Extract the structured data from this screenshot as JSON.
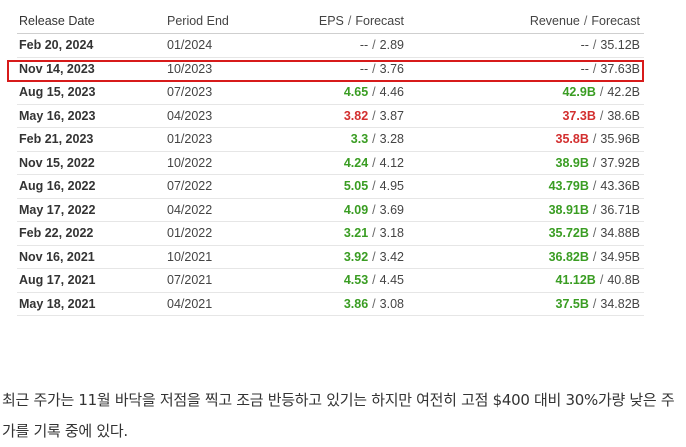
{
  "table": {
    "headers": {
      "release_date": "Release Date",
      "period_end": "Period End",
      "eps": "EPS",
      "eps_forecast": "Forecast",
      "revenue": "Revenue",
      "revenue_forecast": "Forecast",
      "separator": "/"
    },
    "rows": [
      {
        "date": "Feb 20, 2024",
        "period": "01/2024",
        "eps": "--",
        "eps_status": "none",
        "eps_forecast": "2.89",
        "revenue": "--",
        "revenue_status": "none",
        "revenue_forecast": "35.12B"
      },
      {
        "date": "Nov 14, 2023",
        "period": "10/2023",
        "eps": "--",
        "eps_status": "none",
        "eps_forecast": "3.76",
        "revenue": "--",
        "revenue_status": "none",
        "revenue_forecast": "37.63B"
      },
      {
        "date": "Aug 15, 2023",
        "period": "07/2023",
        "eps": "4.65",
        "eps_status": "beat",
        "eps_forecast": "4.46",
        "revenue": "42.9B",
        "revenue_status": "beat",
        "revenue_forecast": "42.2B"
      },
      {
        "date": "May 16, 2023",
        "period": "04/2023",
        "eps": "3.82",
        "eps_status": "miss",
        "eps_forecast": "3.87",
        "revenue": "37.3B",
        "revenue_status": "miss",
        "revenue_forecast": "38.6B"
      },
      {
        "date": "Feb 21, 2023",
        "period": "01/2023",
        "eps": "3.3",
        "eps_status": "beat",
        "eps_forecast": "3.28",
        "revenue": "35.8B",
        "revenue_status": "miss",
        "revenue_forecast": "35.96B"
      },
      {
        "date": "Nov 15, 2022",
        "period": "10/2022",
        "eps": "4.24",
        "eps_status": "beat",
        "eps_forecast": "4.12",
        "revenue": "38.9B",
        "revenue_status": "beat",
        "revenue_forecast": "37.92B"
      },
      {
        "date": "Aug 16, 2022",
        "period": "07/2022",
        "eps": "5.05",
        "eps_status": "beat",
        "eps_forecast": "4.95",
        "revenue": "43.79B",
        "revenue_status": "beat",
        "revenue_forecast": "43.36B"
      },
      {
        "date": "May 17, 2022",
        "period": "04/2022",
        "eps": "4.09",
        "eps_status": "beat",
        "eps_forecast": "3.69",
        "revenue": "38.91B",
        "revenue_status": "beat",
        "revenue_forecast": "36.71B"
      },
      {
        "date": "Feb 22, 2022",
        "period": "01/2022",
        "eps": "3.21",
        "eps_status": "beat",
        "eps_forecast": "3.18",
        "revenue": "35.72B",
        "revenue_status": "beat",
        "revenue_forecast": "34.88B"
      },
      {
        "date": "Nov 16, 2021",
        "period": "10/2021",
        "eps": "3.92",
        "eps_status": "beat",
        "eps_forecast": "3.42",
        "revenue": "36.82B",
        "revenue_status": "beat",
        "revenue_forecast": "34.95B"
      },
      {
        "date": "Aug 17, 2021",
        "period": "07/2021",
        "eps": "4.53",
        "eps_status": "beat",
        "eps_forecast": "4.45",
        "revenue": "41.12B",
        "revenue_status": "beat",
        "revenue_forecast": "40.8B"
      },
      {
        "date": "May 18, 2021",
        "period": "04/2021",
        "eps": "3.86",
        "eps_status": "beat",
        "eps_forecast": "3.08",
        "revenue": "37.5B",
        "revenue_status": "beat",
        "revenue_forecast": "34.82B"
      }
    ]
  },
  "highlighted_row": 1,
  "colors": {
    "beat": "#3a9d23",
    "miss": "#d32f2f",
    "highlight_border": "#d71b1b"
  },
  "paragraph": "최근 주가는 11월 바닥을 저점을 찍고 조금 반등하고 있기는 하지만 여전히 고점 $400 대비 30%가량 낮은 주가를 기록 중에 있다."
}
